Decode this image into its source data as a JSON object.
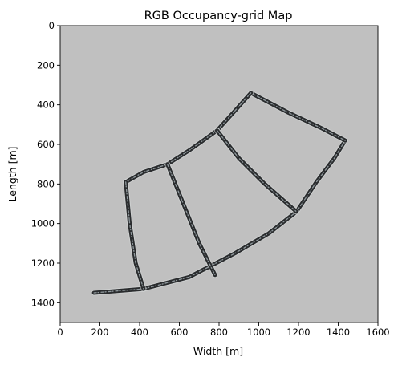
{
  "chart_data": {
    "type": "heatmap",
    "title": "RGB Occupancy-grid Map",
    "xlabel": "Width [m]",
    "ylabel": "Length [m]",
    "xlim": [
      0,
      1600
    ],
    "ylim": [
      1500,
      0
    ],
    "y_axis_inverted": true,
    "xticks": [
      0,
      200,
      400,
      600,
      800,
      1000,
      1200,
      1400,
      1600
    ],
    "yticks": [
      0,
      200,
      400,
      600,
      800,
      1000,
      1200,
      1400
    ],
    "xtick_labels": [
      "0",
      "200",
      "400",
      "600",
      "800",
      "1000",
      "1200",
      "1400",
      "1600"
    ],
    "ytick_labels": [
      "0",
      "200",
      "400",
      "600",
      "800",
      "1000",
      "1200",
      "1400"
    ],
    "grid": false,
    "background_color": "#c0c0c0",
    "road_color": "#2a2c2e",
    "road_edge_color": "#d8dcdc",
    "roads": [
      {
        "name": "outer-bottom-arc",
        "points": [
          [
            170,
            1350
          ],
          [
            420,
            1330
          ],
          [
            650,
            1270
          ],
          [
            880,
            1150
          ],
          [
            1050,
            1050
          ],
          [
            1190,
            940
          ]
        ]
      },
      {
        "name": "right-road",
        "points": [
          [
            1190,
            940
          ],
          [
            1290,
            790
          ],
          [
            1380,
            670
          ],
          [
            1435,
            580
          ]
        ]
      },
      {
        "name": "top-right-road",
        "points": [
          [
            960,
            340
          ],
          [
            1150,
            440
          ],
          [
            1320,
            520
          ],
          [
            1435,
            580
          ]
        ]
      },
      {
        "name": "top-left-road",
        "points": [
          [
            960,
            340
          ],
          [
            880,
            430
          ],
          [
            790,
            530
          ]
        ]
      },
      {
        "name": "upper-arc",
        "points": [
          [
            790,
            530
          ],
          [
            650,
            630
          ],
          [
            540,
            700
          ],
          [
            420,
            740
          ],
          [
            330,
            790
          ]
        ]
      },
      {
        "name": "left-vertical-road",
        "points": [
          [
            330,
            790
          ],
          [
            350,
            1000
          ],
          [
            380,
            1200
          ],
          [
            420,
            1330
          ]
        ]
      },
      {
        "name": "middle-left-diagonal",
        "points": [
          [
            540,
            700
          ],
          [
            620,
            900
          ],
          [
            700,
            1100
          ],
          [
            780,
            1260
          ]
        ]
      },
      {
        "name": "middle-right-diagonal",
        "points": [
          [
            790,
            530
          ],
          [
            900,
            670
          ],
          [
            1030,
            800
          ],
          [
            1190,
            940
          ]
        ]
      }
    ]
  }
}
